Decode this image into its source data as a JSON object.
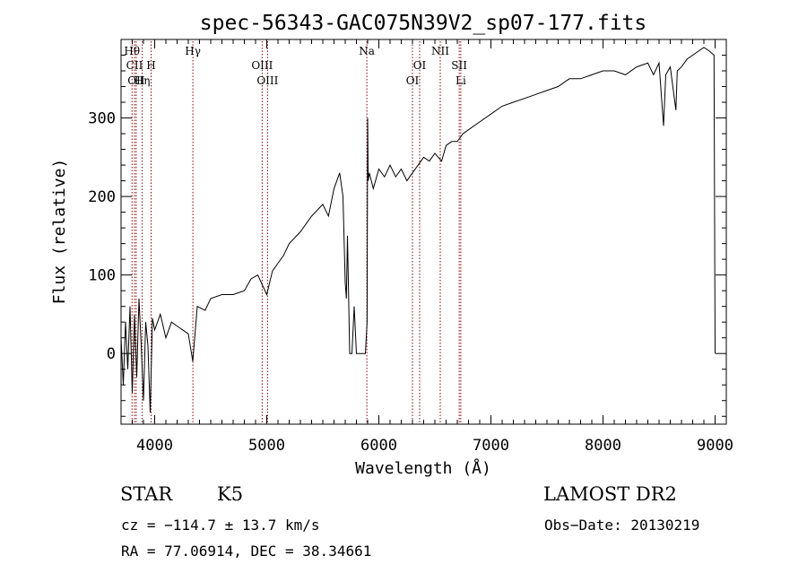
{
  "chart_data": {
    "type": "line",
    "title": "spec-56343-GAC075N39V2_sp07-177.fits",
    "xlabel": "Wavelength (Å)",
    "ylabel": "Flux (relative)",
    "xlim": [
      3700,
      9100
    ],
    "ylim": [
      -90,
      400
    ],
    "x_ticks": [
      4000,
      5000,
      6000,
      7000,
      8000,
      9000
    ],
    "y_ticks": [
      0,
      100,
      200,
      300
    ],
    "grid": false,
    "series": [
      {
        "x": [
          3700,
          3720,
          3740,
          3760,
          3780,
          3800,
          3820,
          3840,
          3860,
          3880,
          3900,
          3920,
          3940,
          3960,
          3980,
          4000,
          4050,
          4100,
          4150,
          4200,
          4250,
          4300,
          4340,
          4380,
          4450,
          4500,
          4600,
          4700,
          4800,
          4860,
          4920,
          5000,
          5050,
          5100,
          5150,
          5200,
          5300,
          5400,
          5500,
          5550,
          5600,
          5650,
          5680,
          5700,
          5710,
          5720,
          5740,
          5760,
          5780,
          5800,
          5850,
          5880,
          5895,
          5900,
          5905,
          5915,
          5950,
          6000,
          6050,
          6100,
          6150,
          6200,
          6250,
          6300,
          6350,
          6400,
          6450,
          6500,
          6560,
          6600,
          6650,
          6700,
          6750,
          6800,
          6900,
          7000,
          7100,
          7200,
          7300,
          7400,
          7500,
          7600,
          7700,
          7800,
          7900,
          8000,
          8100,
          8200,
          8300,
          8400,
          8450,
          8500,
          8540,
          8560,
          8600,
          8650,
          8662,
          8700,
          8750,
          8800,
          8850,
          8900,
          8950,
          8990,
          9000
        ],
        "y": [
          20,
          -40,
          40,
          -20,
          60,
          -50,
          50,
          -30,
          70,
          10,
          -60,
          40,
          10,
          -75,
          45,
          30,
          50,
          20,
          40,
          35,
          30,
          25,
          -10,
          60,
          55,
          70,
          75,
          75,
          80,
          95,
          100,
          75,
          105,
          115,
          125,
          140,
          155,
          175,
          190,
          175,
          210,
          230,
          200,
          90,
          70,
          150,
          0,
          0,
          60,
          0,
          0,
          0,
          40,
          300,
          220,
          230,
          210,
          235,
          225,
          240,
          225,
          235,
          220,
          230,
          240,
          250,
          245,
          255,
          245,
          265,
          270,
          270,
          280,
          285,
          295,
          305,
          315,
          320,
          325,
          330,
          335,
          340,
          350,
          350,
          355,
          360,
          360,
          355,
          365,
          370,
          355,
          370,
          290,
          355,
          365,
          310,
          360,
          365,
          375,
          380,
          385,
          390,
          385,
          380,
          0
        ]
      }
    ],
    "line_markers": [
      {
        "label": "Hθ",
        "wavelength": 3798,
        "row": 1
      },
      {
        "label": "CII",
        "wavelength": 3820,
        "row": 2
      },
      {
        "label": "OII",
        "wavelength": 3835,
        "row": 3
      },
      {
        "label": "Hη",
        "wavelength": 3889,
        "row": 3
      },
      {
        "label": "H",
        "wavelength": 3968,
        "row": 2
      },
      {
        "label": "Hγ",
        "wavelength": 4341,
        "row": 1
      },
      {
        "label": "OIII",
        "wavelength": 4959,
        "row": 2
      },
      {
        "label": "OIII",
        "wavelength": 5007,
        "row": 3
      },
      {
        "label": "Na",
        "wavelength": 5893,
        "row": 1
      },
      {
        "label": "OI",
        "wavelength": 6300,
        "row": 3
      },
      {
        "label": "OI",
        "wavelength": 6364,
        "row": 2
      },
      {
        "label": "NII",
        "wavelength": 6548,
        "row": 1
      },
      {
        "label": "SII",
        "wavelength": 6717,
        "row": 2
      },
      {
        "label": "Li",
        "wavelength": 6731,
        "row": 3
      }
    ],
    "marker_color": "#8b0000"
  },
  "info": {
    "class": "STAR",
    "subclass": "K5",
    "survey": "LAMOST DR2",
    "cz": "cz = −114.7 ± 13.7 km/s",
    "obs_date": "Obs−Date: 20130219",
    "coords": "RA =  77.06914, DEC =  38.34661"
  }
}
